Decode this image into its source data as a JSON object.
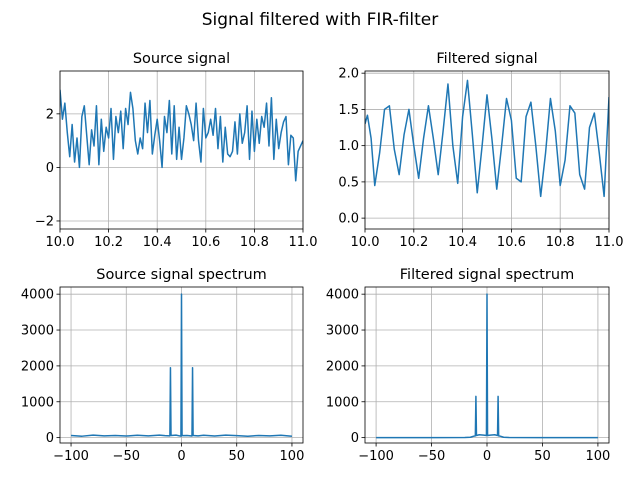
{
  "figure": {
    "title": "Signal filtered with FIR-filter",
    "line_color": "#1f77b4",
    "grid_color": "#b0b0b0"
  },
  "chart_data": [
    {
      "type": "line",
      "title": "Source signal",
      "xlabel": "",
      "ylabel": "",
      "xlim": [
        10.0,
        11.0
      ],
      "ylim": [
        -2.3,
        3.6
      ],
      "grid": true,
      "x_ticks": [
        10.0,
        10.2,
        10.4,
        10.6,
        10.8,
        11.0
      ],
      "x_tick_labels": [
        "10.0",
        "10.2",
        "10.4",
        "10.6",
        "10.8",
        "11.0"
      ],
      "y_ticks": [
        -2,
        0,
        2
      ],
      "y_tick_labels": [
        "−2",
        "0",
        "2"
      ],
      "series": [
        {
          "x": [
            10.0,
            10.01,
            10.02,
            10.03,
            10.04,
            10.05,
            10.06,
            10.07,
            10.08,
            10.09,
            10.1,
            10.11,
            10.12,
            10.13,
            10.14,
            10.15,
            10.16,
            10.17,
            10.18,
            10.19,
            10.2,
            10.21,
            10.22,
            10.23,
            10.24,
            10.25,
            10.26,
            10.27,
            10.28,
            10.29,
            10.3,
            10.31,
            10.32,
            10.33,
            10.34,
            10.35,
            10.36,
            10.37,
            10.38,
            10.39,
            10.4,
            10.41,
            10.42,
            10.43,
            10.44,
            10.45,
            10.46,
            10.47,
            10.48,
            10.49,
            10.5,
            10.51,
            10.52,
            10.53,
            10.54,
            10.55,
            10.56,
            10.57,
            10.58,
            10.59,
            10.6,
            10.61,
            10.62,
            10.63,
            10.64,
            10.65,
            10.66,
            10.67,
            10.68,
            10.69,
            10.7,
            10.71,
            10.72,
            10.73,
            10.74,
            10.75,
            10.76,
            10.77,
            10.78,
            10.79,
            10.8,
            10.81,
            10.82,
            10.83,
            10.84,
            10.85,
            10.86,
            10.87,
            10.88,
            10.89,
            10.9,
            10.91,
            10.92,
            10.93,
            10.94,
            10.95,
            10.96,
            10.97,
            10.98,
            10.99,
            11.0
          ],
          "y": [
            2.9,
            1.8,
            2.4,
            1.3,
            0.4,
            1.6,
            0.2,
            1.1,
            0.0,
            1.9,
            2.3,
            1.2,
            0.1,
            1.4,
            0.8,
            2.3,
            0.1,
            1.8,
            0.6,
            1.5,
            1.1,
            2.2,
            0.3,
            1.9,
            1.3,
            2.1,
            0.7,
            2.2,
            1.6,
            2.8,
            2.2,
            1.0,
            0.5,
            1.1,
            0.7,
            2.4,
            1.3,
            2.5,
            0.5,
            1.2,
            1.8,
            1.0,
            0.0,
            1.9,
            1.3,
            2.5,
            0.5,
            2.3,
            0.3,
            1.5,
            0.3,
            1.1,
            2.3,
            2.0,
            1.6,
            1.0,
            2.4,
            1.0,
            0.2,
            2.2,
            1.1,
            1.3,
            1.8,
            1.2,
            2.2,
            0.7,
            1.9,
            0.2,
            1.5,
            0.5,
            0.4,
            0.6,
            1.7,
            0.5,
            2.0,
            0.9,
            1.3,
            2.3,
            0.3,
            2.1,
            0.6,
            1.8,
            0.9,
            1.9,
            1.5,
            2.4,
            0.8,
            2.6,
            0.3,
            1.8,
            0.7,
            1.3,
            1.7,
            1.9,
            0.1,
            1.2,
            1.1,
            -0.5,
            0.6,
            0.8,
            1.0
          ]
        }
      ]
    },
    {
      "type": "line",
      "title": "Filtered signal",
      "xlabel": "",
      "ylabel": "",
      "xlim": [
        10.0,
        11.0
      ],
      "ylim": [
        -0.15,
        2.03
      ],
      "grid": true,
      "x_ticks": [
        10.0,
        10.2,
        10.4,
        10.6,
        10.8,
        11.0
      ],
      "x_tick_labels": [
        "10.0",
        "10.2",
        "10.4",
        "10.6",
        "10.8",
        "11.0"
      ],
      "y_ticks": [
        0.0,
        0.5,
        1.0,
        1.5,
        2.0
      ],
      "y_tick_labels": [
        "0.0",
        "0.5",
        "1.0",
        "1.5",
        "2.0"
      ],
      "series": [
        {
          "x": [
            10.0,
            10.01,
            10.025,
            10.04,
            10.06,
            10.08,
            10.1,
            10.12,
            10.14,
            10.16,
            10.18,
            10.2,
            10.22,
            10.24,
            10.26,
            10.28,
            10.3,
            10.32,
            10.34,
            10.36,
            10.38,
            10.4,
            10.42,
            10.44,
            10.46,
            10.48,
            10.5,
            10.52,
            10.54,
            10.56,
            10.58,
            10.6,
            10.62,
            10.64,
            10.66,
            10.68,
            10.7,
            10.72,
            10.74,
            10.76,
            10.78,
            10.8,
            10.82,
            10.84,
            10.86,
            10.88,
            10.9,
            10.92,
            10.94,
            10.96,
            10.98,
            11.0
          ],
          "y": [
            1.3,
            1.42,
            1.1,
            0.45,
            0.9,
            1.5,
            1.55,
            0.95,
            0.6,
            1.15,
            1.5,
            1.0,
            0.55,
            1.1,
            1.55,
            1.1,
            0.6,
            1.2,
            1.85,
            1.0,
            0.48,
            1.4,
            1.9,
            1.15,
            0.35,
            1.0,
            1.7,
            1.1,
            0.4,
            1.0,
            1.65,
            1.35,
            0.55,
            0.5,
            1.4,
            1.6,
            1.0,
            0.3,
            0.9,
            1.65,
            1.2,
            0.45,
            0.8,
            1.55,
            1.45,
            0.6,
            0.4,
            1.25,
            1.45,
            0.9,
            0.3,
            1.67
          ]
        }
      ]
    },
    {
      "type": "line",
      "title": "Source signal spectrum",
      "xlabel": "",
      "ylabel": "",
      "xlim": [
        -110,
        110
      ],
      "ylim": [
        -150,
        4200
      ],
      "grid": true,
      "x_ticks": [
        -100,
        -50,
        0,
        50,
        100
      ],
      "x_tick_labels": [
        "−100",
        "−50",
        "0",
        "50",
        "100"
      ],
      "y_ticks": [
        0,
        1000,
        2000,
        3000,
        4000
      ],
      "y_tick_labels": [
        "0",
        "1000",
        "2000",
        "3000",
        "4000"
      ],
      "series": [
        {
          "x": [
            -100,
            -90,
            -80,
            -70,
            -60,
            -50,
            -40,
            -30,
            -20,
            -15,
            -10.5,
            -10,
            -9.5,
            -5,
            -0.5,
            0,
            0.5,
            5,
            9.5,
            10,
            10.5,
            15,
            20,
            30,
            40,
            50,
            60,
            70,
            80,
            90,
            100
          ],
          "y": [
            60,
            40,
            70,
            50,
            60,
            45,
            65,
            50,
            70,
            55,
            50,
            1950,
            60,
            70,
            40,
            4000,
            55,
            60,
            45,
            1950,
            60,
            50,
            65,
            45,
            70,
            55,
            40,
            60,
            50,
            65,
            40
          ]
        }
      ]
    },
    {
      "type": "line",
      "title": "Filtered signal spectrum",
      "xlabel": "",
      "ylabel": "",
      "xlim": [
        -110,
        110
      ],
      "ylim": [
        -150,
        4200
      ],
      "grid": true,
      "x_ticks": [
        -100,
        -50,
        0,
        50,
        100
      ],
      "x_tick_labels": [
        "−100",
        "−50",
        "0",
        "50",
        "100"
      ],
      "y_ticks": [
        0,
        1000,
        2000,
        3000,
        4000
      ],
      "y_tick_labels": [
        "0",
        "1000",
        "2000",
        "3000",
        "4000"
      ],
      "series": [
        {
          "x": [
            -100,
            -50,
            -20,
            -15,
            -12,
            -10.5,
            -10,
            -9.5,
            -7,
            -3,
            -0.5,
            0,
            0.5,
            3,
            7,
            9.5,
            10,
            10.5,
            12,
            15,
            20,
            50,
            100
          ],
          "y": [
            0,
            0,
            2,
            10,
            40,
            50,
            1150,
            60,
            80,
            70,
            60,
            4000,
            60,
            70,
            80,
            60,
            1150,
            50,
            40,
            10,
            2,
            0,
            0
          ]
        }
      ]
    }
  ]
}
